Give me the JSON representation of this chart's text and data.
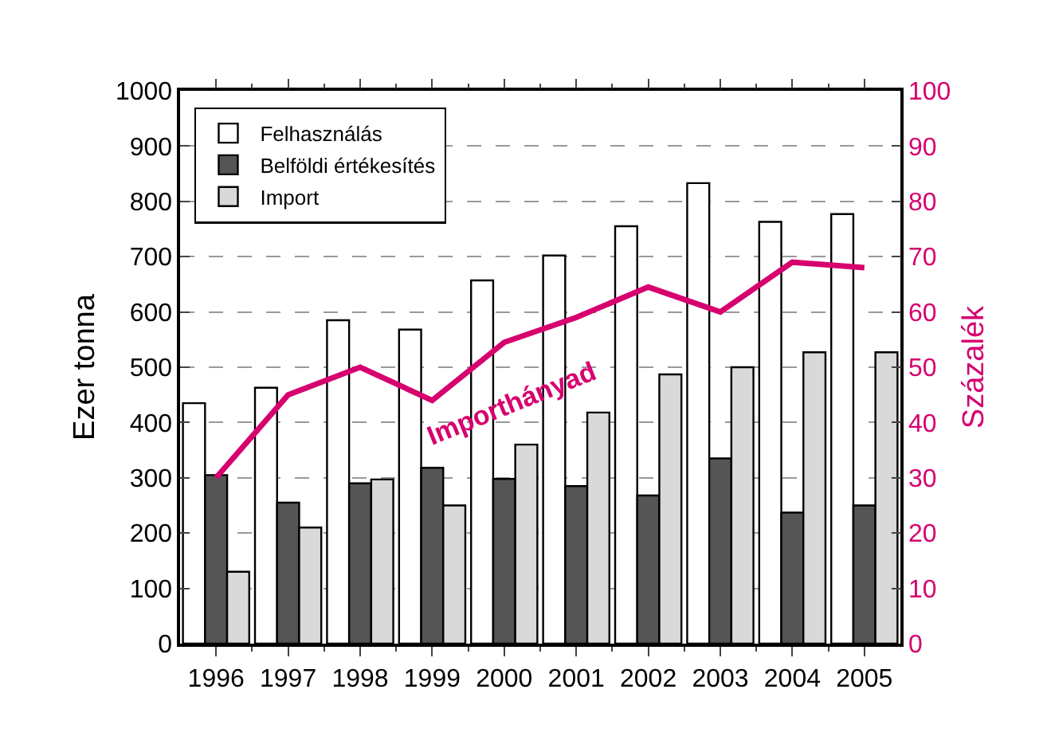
{
  "chart_data": {
    "type": "bar",
    "categories": [
      "1996",
      "1997",
      "1998",
      "1999",
      "2000",
      "2001",
      "2002",
      "2003",
      "2004",
      "2005"
    ],
    "ylabel": "Ezer tonna",
    "y2label": "Százalék",
    "series": [
      {
        "name": "Felhasználás",
        "color": "#ffffff",
        "values": [
          435,
          463,
          585,
          568,
          657,
          702,
          755,
          833,
          763,
          777
        ]
      },
      {
        "name": "Belföldi értékesítés",
        "color": "#555555",
        "values": [
          305,
          255,
          290,
          318,
          298,
          285,
          268,
          335,
          237,
          250
        ]
      },
      {
        "name": "Import",
        "color": "#d9d9d9",
        "values": [
          130,
          210,
          297,
          250,
          360,
          418,
          487,
          500,
          527,
          527
        ]
      },
      {
        "name": "Importhányad",
        "type": "line",
        "axis": "y2",
        "color": "#d6006f",
        "values": [
          30,
          45,
          50,
          44,
          54.5,
          59,
          64.5,
          60,
          69,
          68
        ]
      }
    ],
    "ylim": [
      0,
      1000
    ],
    "yticks": [
      0,
      100,
      200,
      300,
      400,
      500,
      600,
      700,
      800,
      900,
      1000
    ],
    "y2lim": [
      0,
      100
    ],
    "y2ticks": [
      0,
      10,
      20,
      30,
      40,
      50,
      60,
      70,
      80,
      90,
      100
    ],
    "grid": "y",
    "legend": "top left",
    "marker": "none",
    "line_style": "solid"
  }
}
